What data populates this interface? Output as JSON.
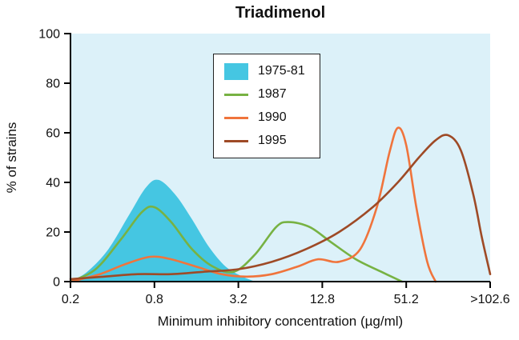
{
  "chart_data": {
    "type": "line",
    "title": "Triadimenol",
    "xlabel": "Minimum inhibitory concentration (µg/ml)",
    "ylabel": "% of strains",
    "x_tick_labels": [
      "0.2",
      "0.8",
      "3.2",
      "12.8",
      "51.2",
      ">102.6"
    ],
    "y_ticks": [
      0,
      20,
      40,
      60,
      80,
      100
    ],
    "ylim": [
      0,
      100
    ],
    "x_scale_note": "logarithmic, each tick is 4x previous",
    "grid": "off",
    "plot_bg": "#dcf1f9",
    "axis_color": "#000000",
    "legend_position": "upper-center-inside-plot",
    "series": [
      {
        "name": "1975-81",
        "style": "area",
        "color": "#45c6e2",
        "points": [
          [
            0,
            0
          ],
          [
            0.2,
            4
          ],
          [
            0.45,
            13
          ],
          [
            0.7,
            27
          ],
          [
            0.9,
            38
          ],
          [
            1.05,
            41
          ],
          [
            1.25,
            35
          ],
          [
            1.45,
            25
          ],
          [
            1.65,
            14
          ],
          [
            1.85,
            6
          ],
          [
            2.05,
            2
          ],
          [
            2.2,
            0
          ]
        ]
      },
      {
        "name": "1987",
        "style": "line",
        "color": "#77b243",
        "points": [
          [
            0,
            0
          ],
          [
            0.3,
            5
          ],
          [
            0.6,
            17
          ],
          [
            0.85,
            28
          ],
          [
            1.0,
            30
          ],
          [
            1.2,
            24
          ],
          [
            1.45,
            13
          ],
          [
            1.7,
            6
          ],
          [
            1.95,
            4
          ],
          [
            2.2,
            11
          ],
          [
            2.45,
            22
          ],
          [
            2.6,
            24
          ],
          [
            2.85,
            22
          ],
          [
            3.1,
            16
          ],
          [
            3.4,
            9
          ],
          [
            3.7,
            4
          ],
          [
            3.95,
            0
          ]
        ]
      },
      {
        "name": "1990",
        "style": "line",
        "color": "#f0743c",
        "points": [
          [
            0,
            0
          ],
          [
            0.35,
            3
          ],
          [
            0.65,
            7
          ],
          [
            0.95,
            10
          ],
          [
            1.2,
            9
          ],
          [
            1.5,
            6
          ],
          [
            1.8,
            3
          ],
          [
            2.1,
            2
          ],
          [
            2.4,
            3
          ],
          [
            2.7,
            6
          ],
          [
            2.95,
            9
          ],
          [
            3.2,
            8
          ],
          [
            3.45,
            13
          ],
          [
            3.65,
            30
          ],
          [
            3.8,
            52
          ],
          [
            3.9,
            62
          ],
          [
            4.0,
            55
          ],
          [
            4.12,
            30
          ],
          [
            4.25,
            8
          ],
          [
            4.35,
            0
          ]
        ]
      },
      {
        "name": "1995",
        "style": "line",
        "color": "#9e4a26",
        "points": [
          [
            0,
            1
          ],
          [
            0.4,
            2
          ],
          [
            0.8,
            3
          ],
          [
            1.2,
            3
          ],
          [
            1.6,
            4
          ],
          [
            2.0,
            5
          ],
          [
            2.4,
            8
          ],
          [
            2.8,
            13
          ],
          [
            3.2,
            20
          ],
          [
            3.6,
            30
          ],
          [
            3.9,
            40
          ],
          [
            4.15,
            50
          ],
          [
            4.35,
            57
          ],
          [
            4.5,
            59
          ],
          [
            4.65,
            53
          ],
          [
            4.8,
            35
          ],
          [
            4.9,
            18
          ],
          [
            5.0,
            3
          ]
        ]
      }
    ]
  }
}
